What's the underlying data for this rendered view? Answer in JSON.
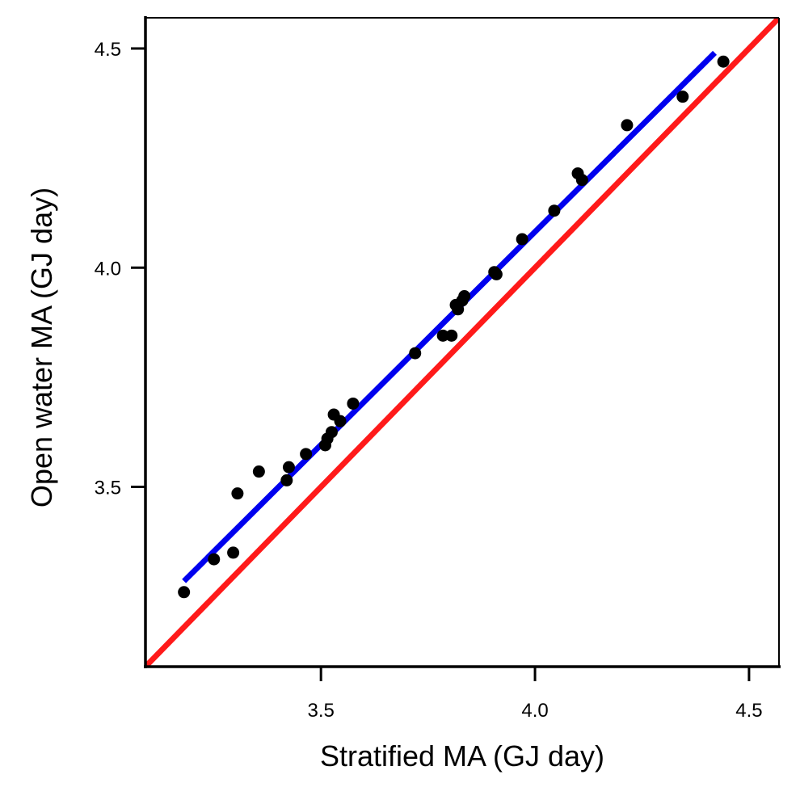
{
  "chart_data": {
    "type": "scatter",
    "title": "",
    "xlabel": "Stratified MA (GJ day)",
    "ylabel": "Open water MA (GJ day)",
    "xlim": [
      3.09,
      4.57
    ],
    "ylim": [
      3.09,
      4.57
    ],
    "xticks": [
      3.5,
      4.0,
      4.5
    ],
    "yticks": [
      3.5,
      4.0,
      4.5
    ],
    "tick_labels": {
      "x": [
        "3.5",
        "4.0",
        "4.5"
      ],
      "y": [
        "3.5",
        "4.0",
        "4.5"
      ]
    },
    "grid": false,
    "legend": "none",
    "series": [
      {
        "kind": "points",
        "color": "#000000",
        "x": [
          3.18,
          3.25,
          3.295,
          3.305,
          3.355,
          3.42,
          3.425,
          3.465,
          3.51,
          3.515,
          3.525,
          3.53,
          3.545,
          3.575,
          3.72,
          3.785,
          3.805,
          3.815,
          3.82,
          3.83,
          3.835,
          3.905,
          3.91,
          3.97,
          4.045,
          4.1,
          4.11,
          4.215,
          4.345,
          4.44
        ],
        "y": [
          3.26,
          3.335,
          3.35,
          3.485,
          3.535,
          3.515,
          3.545,
          3.575,
          3.595,
          3.61,
          3.625,
          3.665,
          3.65,
          3.69,
          3.805,
          3.845,
          3.845,
          3.915,
          3.905,
          3.925,
          3.935,
          3.99,
          3.985,
          4.065,
          4.13,
          4.215,
          4.2,
          4.325,
          4.39,
          4.47
        ]
      },
      {
        "kind": "fit-line",
        "color": "#0000ee",
        "x": [
          3.18,
          4.42
        ],
        "y": [
          3.285,
          4.49
        ]
      },
      {
        "kind": "identity-line",
        "color": "#ff1a1a",
        "x": [
          3.09,
          4.57
        ],
        "y": [
          3.09,
          4.57
        ]
      }
    ]
  }
}
